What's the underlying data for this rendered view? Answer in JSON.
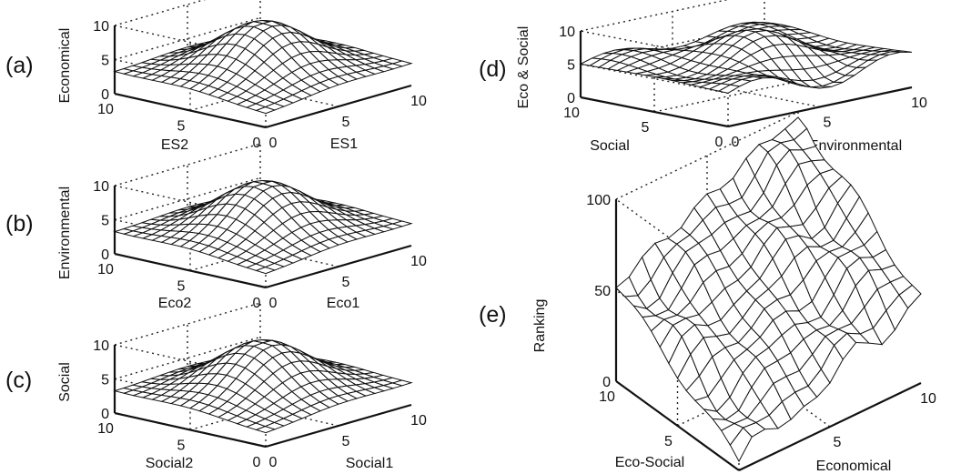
{
  "chart_data": [
    {
      "panel": "(a)",
      "type": "surface",
      "zlabel": "Economical",
      "xlabel": "ES1",
      "ylabel": "ES2",
      "xlim": [
        0,
        10
      ],
      "ylim": [
        0,
        10
      ],
      "zlim": [
        0,
        10
      ],
      "zticks": [
        0,
        5,
        10
      ],
      "xticks": [
        0,
        5,
        10
      ],
      "yticks": [
        0,
        5,
        10
      ],
      "grid": true,
      "surface_shape": "smooth peak at the centre (~9) falling to ~2 at the edges",
      "z_samples": {
        "x": [
          0,
          5,
          10
        ],
        "y": [
          0,
          5,
          10
        ],
        "z": [
          [
            2.5,
            3.5,
            4.5
          ],
          [
            3.5,
            9,
            3.5
          ],
          [
            4.5,
            3.5,
            3
          ]
        ]
      }
    },
    {
      "panel": "(b)",
      "type": "surface",
      "zlabel": "Environmental",
      "xlabel": "Eco1",
      "ylabel": "Eco2",
      "xlim": [
        0,
        10
      ],
      "ylim": [
        0,
        10
      ],
      "zlim": [
        0,
        10
      ],
      "zticks": [
        0,
        5,
        10
      ],
      "xticks": [
        0,
        5,
        10
      ],
      "yticks": [
        0,
        5,
        10
      ],
      "grid": true,
      "surface_shape": "smooth peak at the centre (~9) falling to ~2 at the edges",
      "z_samples": {
        "x": [
          0,
          5,
          10
        ],
        "y": [
          0,
          5,
          10
        ],
        "z": [
          [
            2.5,
            3.5,
            4.5
          ],
          [
            3.5,
            9,
            3.5
          ],
          [
            4.5,
            3.5,
            3
          ]
        ]
      }
    },
    {
      "panel": "(c)",
      "type": "surface",
      "zlabel": "Social",
      "xlabel": "Social1",
      "ylabel": "Social2",
      "xlim": [
        0,
        10
      ],
      "ylim": [
        0,
        10
      ],
      "zlim": [
        0,
        10
      ],
      "zticks": [
        0,
        5,
        10
      ],
      "xticks": [
        0,
        5,
        10
      ],
      "yticks": [
        0,
        5,
        10
      ],
      "grid": true,
      "surface_shape": "smooth peak at the centre (~9) falling to ~2 at the edges",
      "z_samples": {
        "x": [
          0,
          5,
          10
        ],
        "y": [
          0,
          5,
          10
        ],
        "z": [
          [
            2.5,
            3.5,
            4.5
          ],
          [
            3.5,
            9,
            3.5
          ],
          [
            4.5,
            3.5,
            3
          ]
        ]
      }
    },
    {
      "panel": "(d)",
      "type": "surface",
      "zlabel": "Eco & Social",
      "xlabel": "Environmental",
      "ylabel": "Social",
      "xlim": [
        0,
        10
      ],
      "ylim": [
        0,
        10
      ],
      "zlim": [
        0,
        10
      ],
      "zticks": [
        0,
        5,
        10
      ],
      "xticks": [
        0,
        5,
        10
      ],
      "yticks": [
        0,
        5,
        10
      ],
      "grid": true,
      "surface_shape": "ridged surface, high (~9) along the far side and middle, ~5 at the left edge",
      "z_samples": {
        "x": [
          0,
          5,
          10
        ],
        "y": [
          0,
          5,
          10
        ],
        "z": [
          [
            2,
            3.5,
            4.5
          ],
          [
            5,
            8,
            8
          ],
          [
            5.5,
            9,
            9
          ]
        ]
      }
    },
    {
      "panel": "(e)",
      "type": "surface",
      "zlabel": "Ranking",
      "xlabel": "Economical",
      "ylabel": "Eco-Social",
      "xlim": [
        0,
        10
      ],
      "ylim": [
        0,
        10
      ],
      "zlim": [
        0,
        100
      ],
      "zticks": [
        0,
        50,
        100
      ],
      "xticks": [
        0,
        5,
        10
      ],
      "yticks": [
        0,
        5,
        10
      ],
      "grid": true,
      "surface_shape": "rises from ~5 at the front corner (0,0) to ~90 at the far corner (10,10)",
      "z_samples": {
        "x": [
          0,
          5,
          10
        ],
        "y": [
          0,
          5,
          10
        ],
        "z": [
          [
            5,
            30,
            50
          ],
          [
            30,
            50,
            75
          ],
          [
            65,
            75,
            90
          ]
        ]
      }
    }
  ]
}
